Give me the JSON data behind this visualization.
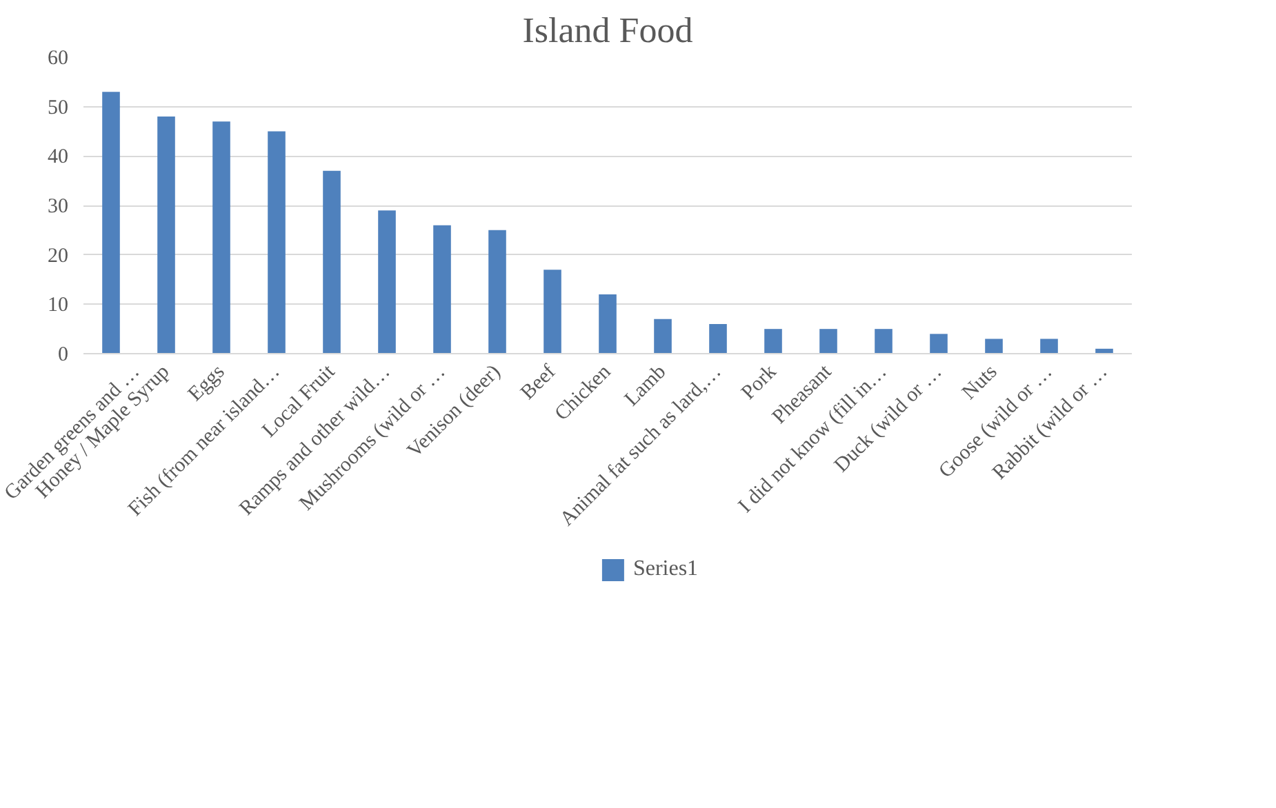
{
  "chart_data": {
    "type": "bar",
    "title": "Island Food",
    "categories": [
      "Garden greens and …",
      "Honey / Maple Syrup",
      "Eggs",
      "Fish (from near island…",
      "Local Fruit",
      "Ramps and other wild…",
      "Mushrooms (wild or …",
      "Venison (deer)",
      "Beef",
      "Chicken",
      "Lamb",
      "Animal fat such as lard,…",
      "Pork",
      "Pheasant",
      "I did not know (fill in…",
      "Duck (wild or …",
      "Nuts",
      "Goose (wild or …",
      "Rabbit (wild or …"
    ],
    "series": [
      {
        "name": "Series1",
        "color": "#4f81bd",
        "values": [
          53,
          48,
          47,
          45,
          37,
          29,
          26,
          25,
          17,
          12,
          7,
          6,
          5,
          5,
          5,
          4,
          3,
          3,
          1
        ]
      }
    ],
    "ylim": [
      0,
      60
    ],
    "yticks": [
      0,
      10,
      20,
      30,
      40,
      50,
      60
    ],
    "grid": "y",
    "legend": "bottom"
  }
}
